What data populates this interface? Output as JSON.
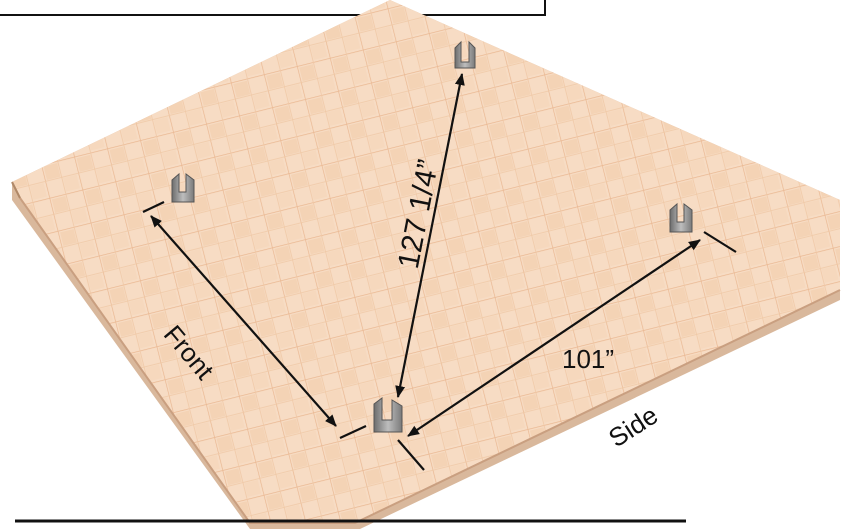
{
  "labels": {
    "diagonal": "127 1/4”",
    "side_measure": "101”",
    "front": "Front",
    "side": "Side"
  },
  "brackets": [
    {
      "name": "rear-left"
    },
    {
      "name": "rear-right"
    },
    {
      "name": "back-right"
    },
    {
      "name": "front-corner"
    }
  ]
}
